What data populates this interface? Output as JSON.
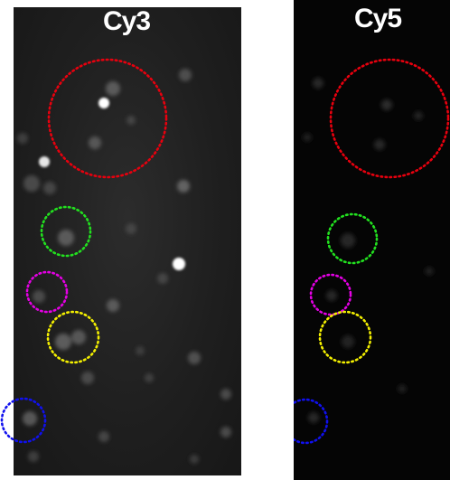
{
  "panels": [
    {
      "label": "Cy3"
    },
    {
      "label": "Cy5"
    }
  ],
  "circle_colors": {
    "red": "#e8000e",
    "green": "#22e01f",
    "magenta": "#e400e4",
    "yellow": "#f4f000",
    "blue": "#1010ee"
  }
}
